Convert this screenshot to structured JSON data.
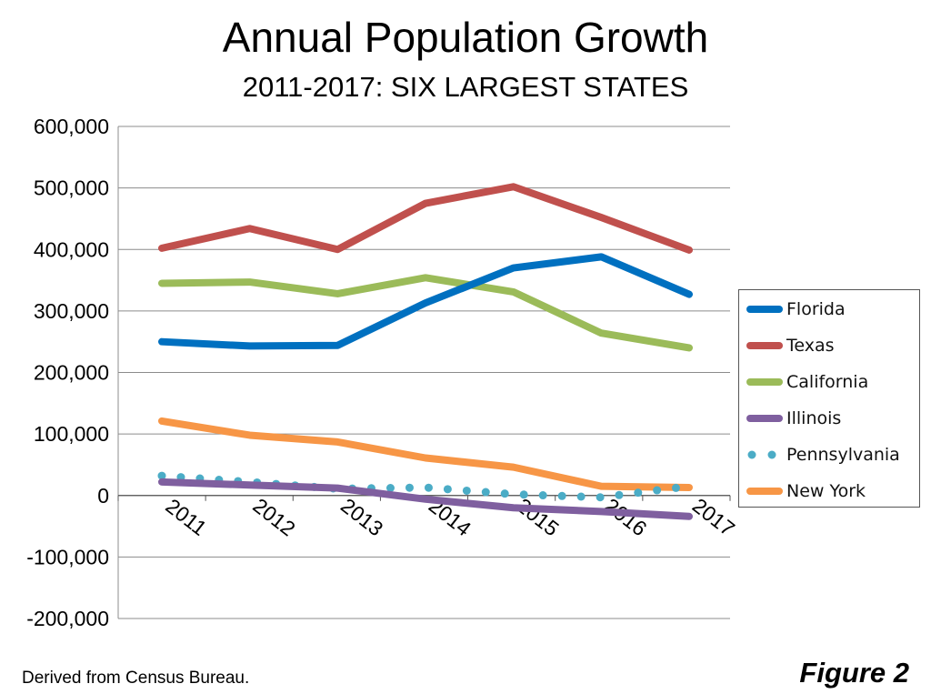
{
  "chart_data": {
    "type": "line",
    "title": "Annual Population Growth",
    "subtitle": "2011-2017: SIX LARGEST STATES",
    "x": [
      "2011",
      "2012",
      "2013",
      "2014",
      "2015",
      "2016",
      "2017"
    ],
    "ylim": [
      -200000,
      600000
    ],
    "yticks": [
      "600,000",
      "500,000",
      "400,000",
      "300,000",
      "200,000",
      "100,000",
      "0",
      "-100,000",
      "-200,000"
    ],
    "grid": true,
    "legend_position": "right",
    "series": [
      {
        "name": "Florida",
        "values": [
          250000,
          243000,
          244000,
          313000,
          370000,
          388000,
          327000
        ],
        "color": "#0070C0",
        "style": "solid"
      },
      {
        "name": "Texas",
        "values": [
          402000,
          434000,
          400000,
          475000,
          502000,
          452000,
          399000
        ],
        "color": "#C0504D",
        "style": "solid"
      },
      {
        "name": "California",
        "values": [
          345000,
          347000,
          328000,
          354000,
          331000,
          264000,
          240000
        ],
        "color": "#9BBB59",
        "style": "solid"
      },
      {
        "name": "Illinois",
        "values": [
          22000,
          17000,
          12000,
          -6000,
          -20000,
          -26000,
          -34000
        ],
        "color": "#7F5F9F",
        "style": "solid"
      },
      {
        "name": "Pennsylvania",
        "values": [
          32000,
          22000,
          11000,
          13000,
          2000,
          -3000,
          15000
        ],
        "color": "#4BACC6",
        "style": "dotted"
      },
      {
        "name": "New York",
        "values": [
          121000,
          98000,
          87000,
          61000,
          46000,
          15000,
          13000
        ],
        "color": "#F79646",
        "style": "solid"
      }
    ]
  },
  "footer": {
    "source": "Derived from Census Bureau.",
    "figure_label": "Figure 2"
  }
}
